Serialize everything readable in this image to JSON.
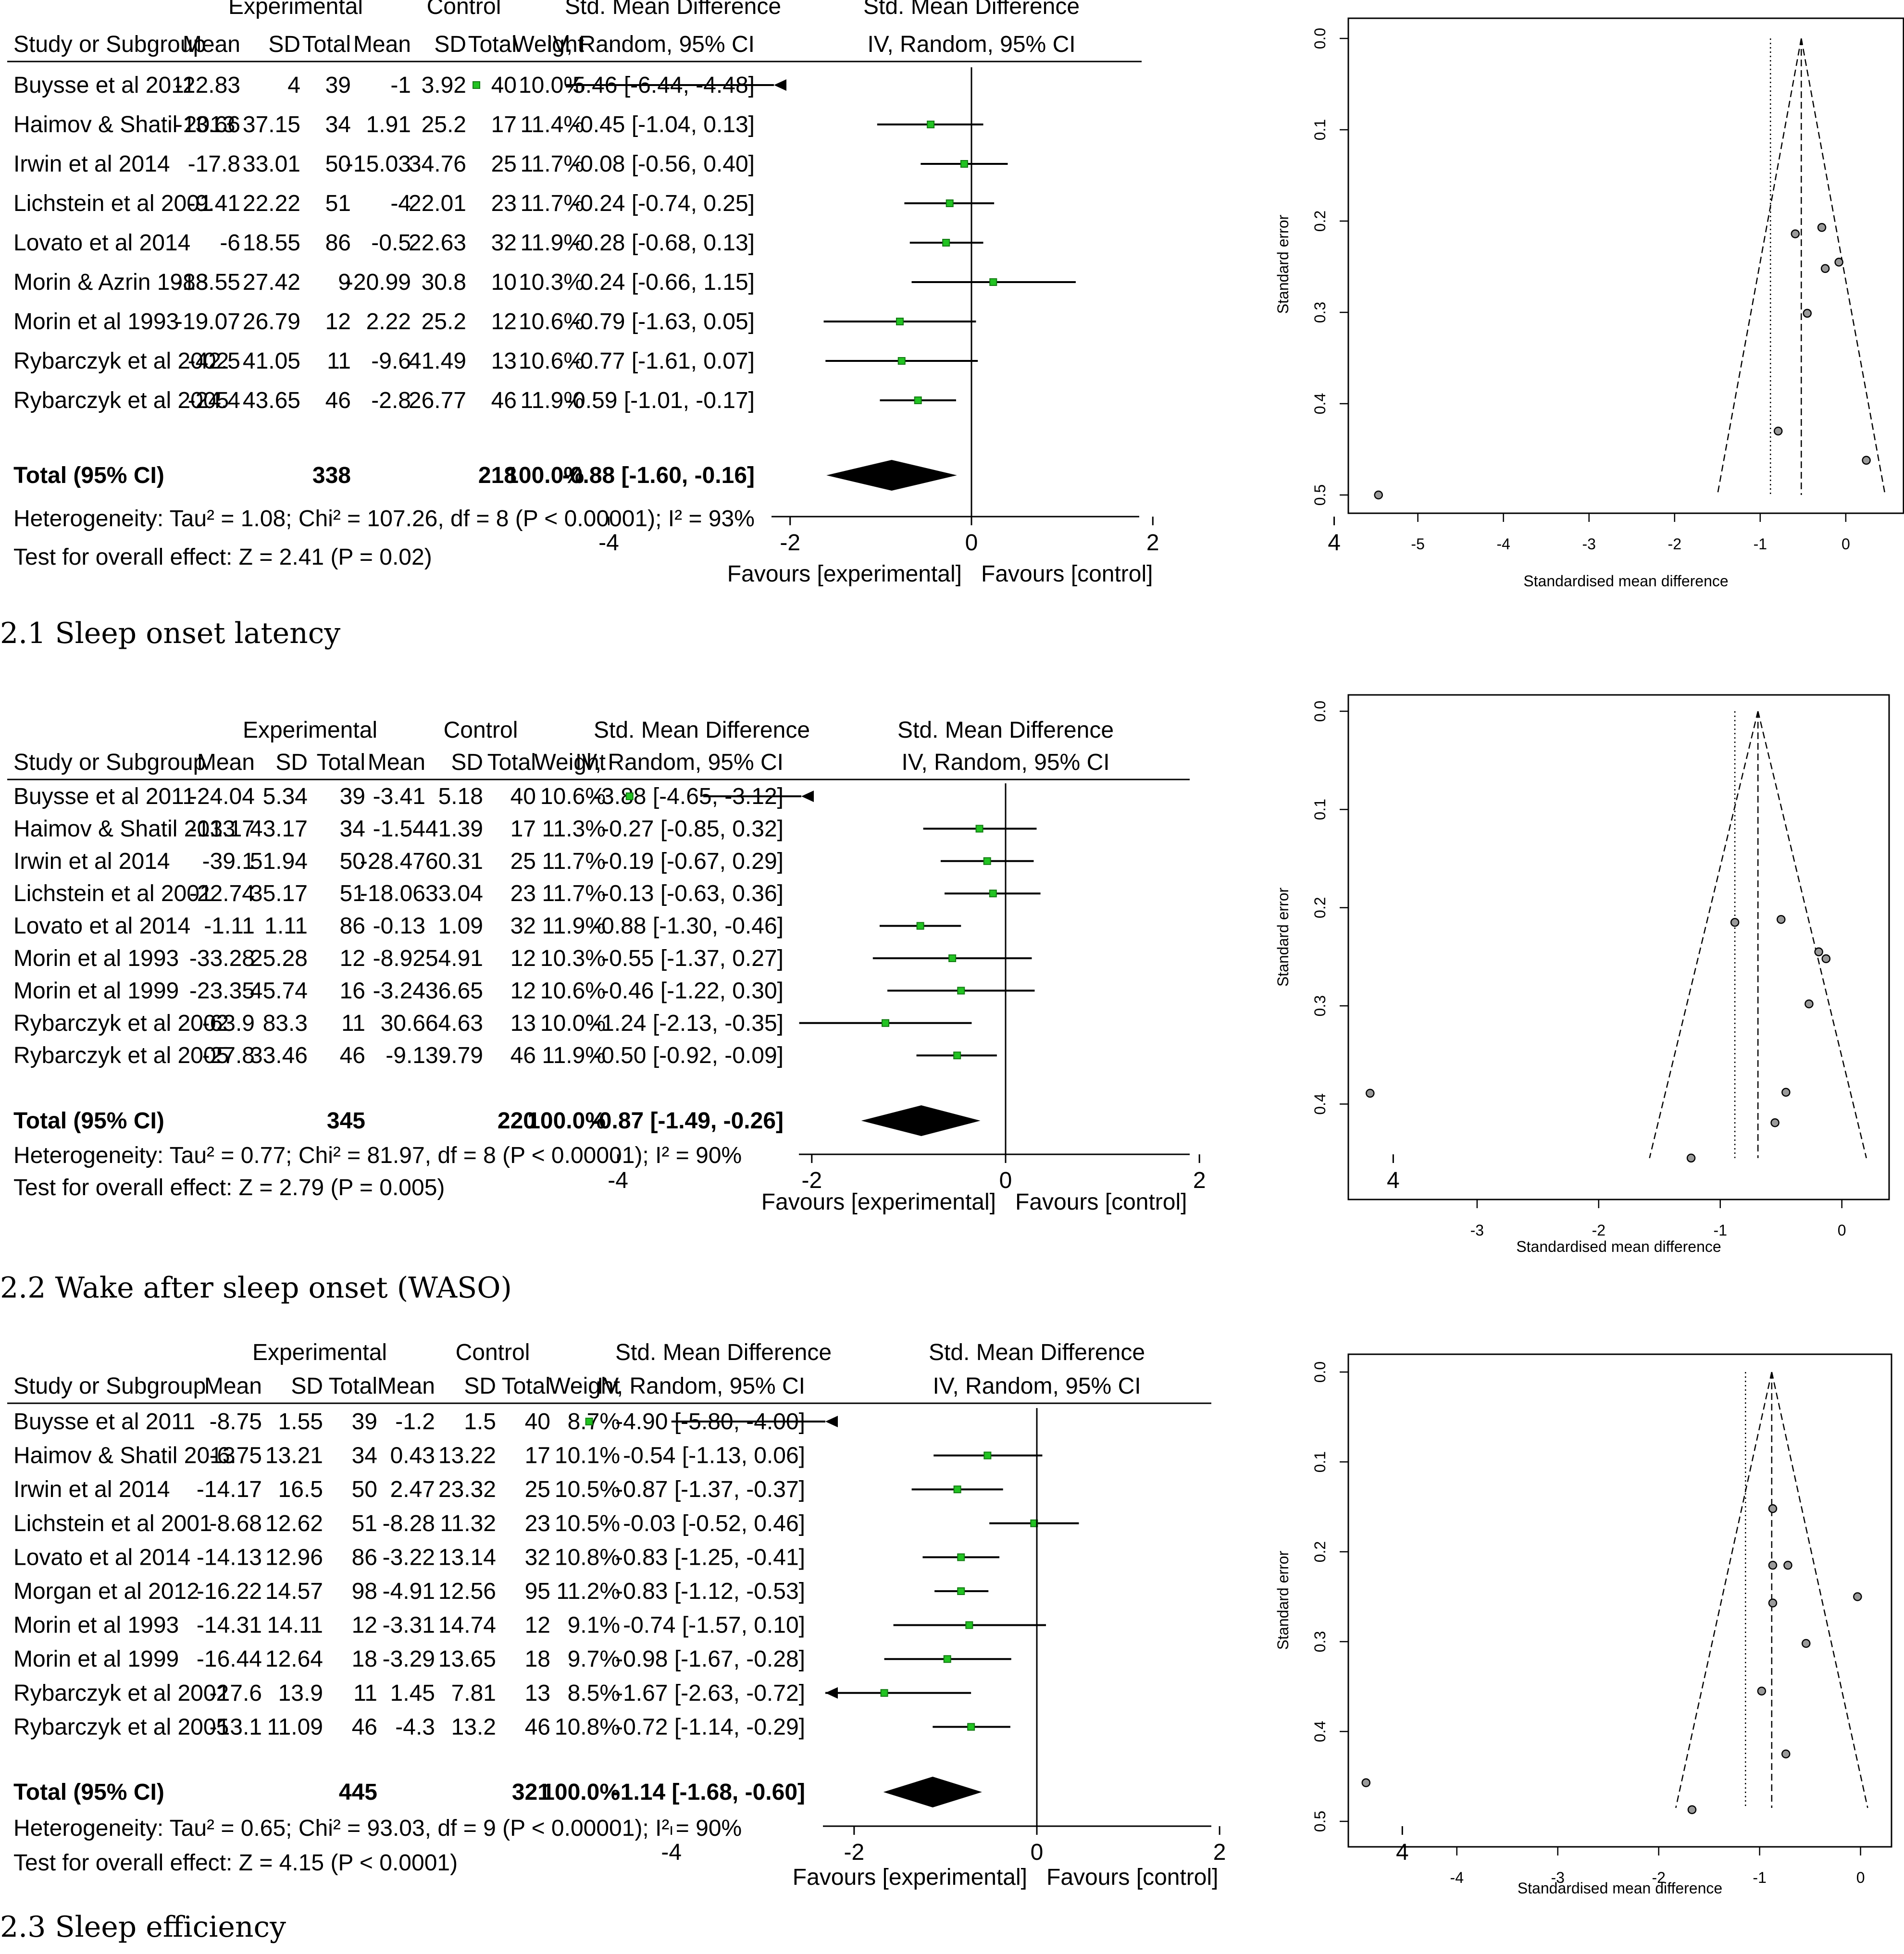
{
  "chart_data": [
    {
      "type": "forest",
      "caption": "2.1 Sleep onset latency",
      "headers": {
        "group_experimental": "Experimental",
        "group_control": "Control",
        "group_smd": "Std. Mean Difference",
        "plot_title": "Std. Mean Difference",
        "study": "Study or Subgroup",
        "mean": "Mean",
        "sd": "SD",
        "total": "Total",
        "weight": "Weight",
        "ci": "IV, Random, 95% CI",
        "plot_ci": "IV, Random, 95% CI"
      },
      "studies": [
        {
          "name": "Buysse et al 2011",
          "exp_mean": "-22.83",
          "exp_sd": "4",
          "exp_total": "39",
          "ctl_mean": "-1",
          "ctl_sd": "3.92",
          "ctl_total": "40",
          "weight": "10.0%",
          "ci_text": "-5.46 [-6.44, -4.48]",
          "smd": -5.46,
          "lo": -6.44,
          "hi": -4.48
        },
        {
          "name": "Haimov & Shatil 2013",
          "exp_mean": "-13.66",
          "exp_sd": "37.15",
          "exp_total": "34",
          "ctl_mean": "1.91",
          "ctl_sd": "25.2",
          "ctl_total": "17",
          "weight": "11.4%",
          "ci_text": "-0.45 [-1.04, 0.13]",
          "smd": -0.45,
          "lo": -1.04,
          "hi": 0.13
        },
        {
          "name": "Irwin et al 2014",
          "exp_mean": "-17.8",
          "exp_sd": "33.01",
          "exp_total": "50",
          "ctl_mean": "-15.03",
          "ctl_sd": "34.76",
          "ctl_total": "25",
          "weight": "11.7%",
          "ci_text": "-0.08 [-0.56, 0.40]",
          "smd": -0.08,
          "lo": -0.56,
          "hi": 0.4
        },
        {
          "name": "Lichstein et al 2001",
          "exp_mean": "-9.41",
          "exp_sd": "22.22",
          "exp_total": "51",
          "ctl_mean": "-4",
          "ctl_sd": "22.01",
          "ctl_total": "23",
          "weight": "11.7%",
          "ci_text": "-0.24 [-0.74, 0.25]",
          "smd": -0.24,
          "lo": -0.74,
          "hi": 0.25
        },
        {
          "name": "Lovato et al 2014",
          "exp_mean": "-6",
          "exp_sd": "18.55",
          "exp_total": "86",
          "ctl_mean": "-0.5",
          "ctl_sd": "22.63",
          "ctl_total": "32",
          "weight": "11.9%",
          "ci_text": "-0.28 [-0.68, 0.13]",
          "smd": -0.28,
          "lo": -0.68,
          "hi": 0.13
        },
        {
          "name": "Morin & Azrin 1988",
          "exp_mean": "-13.55",
          "exp_sd": "27.42",
          "exp_total": "9",
          "ctl_mean": "-20.99",
          "ctl_sd": "30.8",
          "ctl_total": "10",
          "weight": "10.3%",
          "ci_text": "0.24 [-0.66, 1.15]",
          "smd": 0.24,
          "lo": -0.66,
          "hi": 1.15
        },
        {
          "name": "Morin et al 1993",
          "exp_mean": "-19.07",
          "exp_sd": "26.79",
          "exp_total": "12",
          "ctl_mean": "2.22",
          "ctl_sd": "25.2",
          "ctl_total": "12",
          "weight": "10.6%",
          "ci_text": "-0.79 [-1.63, 0.05]",
          "smd": -0.79,
          "lo": -1.63,
          "hi": 0.05
        },
        {
          "name": "Rybarczyk et al 2002",
          "exp_mean": "-42.5",
          "exp_sd": "41.05",
          "exp_total": "11",
          "ctl_mean": "-9.6",
          "ctl_sd": "41.49",
          "ctl_total": "13",
          "weight": "10.6%",
          "ci_text": "-0.77 [-1.61, 0.07]",
          "smd": -0.77,
          "lo": -1.61,
          "hi": 0.07
        },
        {
          "name": "Rybarczyk et al 2005",
          "exp_mean": "-24.4",
          "exp_sd": "43.65",
          "exp_total": "46",
          "ctl_mean": "-2.8",
          "ctl_sd": "26.77",
          "ctl_total": "46",
          "weight": "11.9%",
          "ci_text": "-0.59 [-1.01, -0.17]",
          "smd": -0.59,
          "lo": -1.01,
          "hi": -0.17
        }
      ],
      "total": {
        "label": "Total (95% CI)",
        "exp_total": "338",
        "ctl_total": "218",
        "weight": "100.0%",
        "ci_text": "-0.88 [-1.60, -0.16]",
        "smd": -0.88,
        "lo": -1.6,
        "hi": -0.16
      },
      "heterogeneity": "Heterogeneity: Tau² = 1.08; Chi² = 107.26, df = 8 (P < 0.00001); I² = 93%",
      "overall_effect": "Test for overall effect: Z = 2.41 (P = 0.02)",
      "xlim": [
        -6,
        6
      ],
      "xticks": [
        -4,
        -2,
        0,
        2,
        4
      ],
      "xtick_labels": [
        "-4",
        "-2",
        "0",
        "2",
        "4"
      ],
      "favours_left": "Favours [experimental]",
      "favours_right": "Favours [control]"
    },
    {
      "type": "forest",
      "caption": "2.2 Wake after sleep onset (WASO)",
      "headers": {
        "group_experimental": "Experimental",
        "group_control": "Control",
        "group_smd": "Std. Mean Difference",
        "plot_title": "Std. Mean Difference",
        "study": "Study or Subgroup",
        "mean": "Mean",
        "sd": "SD",
        "total": "Total",
        "weight": "Weight",
        "ci": "IV, Random, 95% CI",
        "plot_ci": "IV, Random, 95% CI"
      },
      "studies": [
        {
          "name": "Buysse et al 2011",
          "exp_mean": "-24.04",
          "exp_sd": "5.34",
          "exp_total": "39",
          "ctl_mean": "-3.41",
          "ctl_sd": "5.18",
          "ctl_total": "40",
          "weight": "10.6%",
          "ci_text": "-3.88 [-4.65, -3.12]",
          "smd": -3.88,
          "lo": -4.65,
          "hi": -3.12
        },
        {
          "name": "Haimov & Shatil 2013",
          "exp_mean": "-13.17",
          "exp_sd": "43.17",
          "exp_total": "34",
          "ctl_mean": "-1.54",
          "ctl_sd": "41.39",
          "ctl_total": "17",
          "weight": "11.3%",
          "ci_text": "-0.27 [-0.85, 0.32]",
          "smd": -0.27,
          "lo": -0.85,
          "hi": 0.32
        },
        {
          "name": "Irwin et al 2014",
          "exp_mean": "-39.1",
          "exp_sd": "51.94",
          "exp_total": "50",
          "ctl_mean": "-28.47",
          "ctl_sd": "60.31",
          "ctl_total": "25",
          "weight": "11.7%",
          "ci_text": "-0.19 [-0.67, 0.29]",
          "smd": -0.19,
          "lo": -0.67,
          "hi": 0.29
        },
        {
          "name": "Lichstein et al 2001",
          "exp_mean": "-22.74",
          "exp_sd": "35.17",
          "exp_total": "51",
          "ctl_mean": "-18.06",
          "ctl_sd": "33.04",
          "ctl_total": "23",
          "weight": "11.7%",
          "ci_text": "-0.13 [-0.63, 0.36]",
          "smd": -0.13,
          "lo": -0.63,
          "hi": 0.36
        },
        {
          "name": "Lovato et al 2014",
          "exp_mean": "-1.11",
          "exp_sd": "1.11",
          "exp_total": "86",
          "ctl_mean": "-0.13",
          "ctl_sd": "1.09",
          "ctl_total": "32",
          "weight": "11.9%",
          "ci_text": "-0.88 [-1.30, -0.46]",
          "smd": -0.88,
          "lo": -1.3,
          "hi": -0.46
        },
        {
          "name": "Morin et al 1993",
          "exp_mean": "-33.28",
          "exp_sd": "25.28",
          "exp_total": "12",
          "ctl_mean": "-8.92",
          "ctl_sd": "54.91",
          "ctl_total": "12",
          "weight": "10.3%",
          "ci_text": "-0.55 [-1.37, 0.27]",
          "smd": -0.55,
          "lo": -1.37,
          "hi": 0.27
        },
        {
          "name": "Morin et al 1999",
          "exp_mean": "-23.35",
          "exp_sd": "45.74",
          "exp_total": "16",
          "ctl_mean": "-3.24",
          "ctl_sd": "36.65",
          "ctl_total": "12",
          "weight": "10.6%",
          "ci_text": "-0.46 [-1.22, 0.30]",
          "smd": -0.46,
          "lo": -1.22,
          "hi": 0.3
        },
        {
          "name": "Rybarczyk et al 2002",
          "exp_mean": "-63.9",
          "exp_sd": "83.3",
          "exp_total": "11",
          "ctl_mean": "30.6",
          "ctl_sd": "64.63",
          "ctl_total": "13",
          "weight": "10.0%",
          "ci_text": "-1.24 [-2.13, -0.35]",
          "smd": -1.24,
          "lo": -2.13,
          "hi": -0.35
        },
        {
          "name": "Rybarczyk et al 2005",
          "exp_mean": "-27.8",
          "exp_sd": "33.46",
          "exp_total": "46",
          "ctl_mean": "-9.1",
          "ctl_sd": "39.79",
          "ctl_total": "46",
          "weight": "11.9%",
          "ci_text": "-0.50 [-0.92, -0.09]",
          "smd": -0.5,
          "lo": -0.92,
          "hi": -0.09
        }
      ],
      "total": {
        "label": "Total (95% CI)",
        "exp_total": "345",
        "ctl_total": "220",
        "weight": "100.0%",
        "ci_text": "-0.87 [-1.49, -0.26]",
        "smd": -0.87,
        "lo": -1.49,
        "hi": -0.26
      },
      "heterogeneity": "Heterogeneity: Tau² = 0.77; Chi² = 81.97, df = 8 (P < 0.00001); I² = 90%",
      "overall_effect": "Test for overall effect: Z = 2.79 (P = 0.005)",
      "xlim": [
        -5,
        4.5
      ],
      "xticks": [
        -4,
        -2,
        0,
        2,
        4
      ],
      "xtick_labels": [
        "-4",
        "-2",
        "0",
        "2",
        "4"
      ],
      "favours_left": "Favours [experimental]",
      "favours_right": "Favours [control]"
    },
    {
      "type": "forest",
      "caption": "2.3 Sleep efficiency",
      "headers": {
        "group_experimental": "Experimental",
        "group_control": "Control",
        "group_smd": "Std. Mean Difference",
        "plot_title": "Std. Mean Difference",
        "study": "Study or Subgroup",
        "mean": "Mean",
        "sd": "SD",
        "total": "Total",
        "weight": "Weight",
        "ci": "IV, Random, 95% CI",
        "plot_ci": "IV, Random, 95% CI"
      },
      "studies": [
        {
          "name": "Buysse et al 2011",
          "exp_mean": "-8.75",
          "exp_sd": "1.55",
          "exp_total": "39",
          "ctl_mean": "-1.2",
          "ctl_sd": "1.5",
          "ctl_total": "40",
          "weight": "8.7%",
          "ci_text": "-4.90 [-5.80, -4.00]",
          "smd": -4.9,
          "lo": -5.8,
          "hi": -4.0
        },
        {
          "name": "Haimov & Shatil 2013",
          "exp_mean": "-6.75",
          "exp_sd": "13.21",
          "exp_total": "34",
          "ctl_mean": "0.43",
          "ctl_sd": "13.22",
          "ctl_total": "17",
          "weight": "10.1%",
          "ci_text": "-0.54 [-1.13, 0.06]",
          "smd": -0.54,
          "lo": -1.13,
          "hi": 0.06
        },
        {
          "name": "Irwin et al 2014",
          "exp_mean": "-14.17",
          "exp_sd": "16.5",
          "exp_total": "50",
          "ctl_mean": "2.47",
          "ctl_sd": "23.32",
          "ctl_total": "25",
          "weight": "10.5%",
          "ci_text": "-0.87 [-1.37, -0.37]",
          "smd": -0.87,
          "lo": -1.37,
          "hi": -0.37
        },
        {
          "name": "Lichstein et al 2001",
          "exp_mean": "-8.68",
          "exp_sd": "12.62",
          "exp_total": "51",
          "ctl_mean": "-8.28",
          "ctl_sd": "11.32",
          "ctl_total": "23",
          "weight": "10.5%",
          "ci_text": "-0.03 [-0.52, 0.46]",
          "smd": -0.03,
          "lo": -0.52,
          "hi": 0.46
        },
        {
          "name": "Lovato et al 2014",
          "exp_mean": "-14.13",
          "exp_sd": "12.96",
          "exp_total": "86",
          "ctl_mean": "-3.22",
          "ctl_sd": "13.14",
          "ctl_total": "32",
          "weight": "10.8%",
          "ci_text": "-0.83 [-1.25, -0.41]",
          "smd": -0.83,
          "lo": -1.25,
          "hi": -0.41
        },
        {
          "name": "Morgan et al 2012",
          "exp_mean": "-16.22",
          "exp_sd": "14.57",
          "exp_total": "98",
          "ctl_mean": "-4.91",
          "ctl_sd": "12.56",
          "ctl_total": "95",
          "weight": "11.2%",
          "ci_text": "-0.83 [-1.12, -0.53]",
          "smd": -0.83,
          "lo": -1.12,
          "hi": -0.53
        },
        {
          "name": "Morin et al 1993",
          "exp_mean": "-14.31",
          "exp_sd": "14.11",
          "exp_total": "12",
          "ctl_mean": "-3.31",
          "ctl_sd": "14.74",
          "ctl_total": "12",
          "weight": "9.1%",
          "ci_text": "-0.74 [-1.57, 0.10]",
          "smd": -0.74,
          "lo": -1.57,
          "hi": 0.1
        },
        {
          "name": "Morin et al 1999",
          "exp_mean": "-16.44",
          "exp_sd": "12.64",
          "exp_total": "18",
          "ctl_mean": "-3.29",
          "ctl_sd": "13.65",
          "ctl_total": "18",
          "weight": "9.7%",
          "ci_text": "-0.98 [-1.67, -0.28]",
          "smd": -0.98,
          "lo": -1.67,
          "hi": -0.28
        },
        {
          "name": "Rybarczyk et al 2002",
          "exp_mean": "-17.6",
          "exp_sd": "13.9",
          "exp_total": "11",
          "ctl_mean": "1.45",
          "ctl_sd": "7.81",
          "ctl_total": "13",
          "weight": "8.5%",
          "ci_text": "-1.67 [-2.63, -0.72]",
          "smd": -1.67,
          "lo": -2.63,
          "hi": -0.72
        },
        {
          "name": "Rybarczyk et al 2005",
          "exp_mean": "-13.1",
          "exp_sd": "11.09",
          "exp_total": "46",
          "ctl_mean": "-4.3",
          "ctl_sd": "13.2",
          "ctl_total": "46",
          "weight": "10.8%",
          "ci_text": "-0.72 [-1.14, -0.29]",
          "smd": -0.72,
          "lo": -1.14,
          "hi": -0.29
        }
      ],
      "total": {
        "label": "Total (95% CI)",
        "exp_total": "445",
        "ctl_total": "321",
        "weight": "100.0%",
        "ci_text": "-1.14 [-1.68, -0.60]",
        "smd": -1.14,
        "lo": -1.68,
        "hi": -0.6
      },
      "heterogeneity": "Heterogeneity: Tau² = 0.65; Chi² = 93.03, df = 9 (P < 0.00001); I² = 90%",
      "overall_effect": "Test for overall effect: Z = 4.15 (P < 0.0001)",
      "xlim": [
        -5.8,
        4.6
      ],
      "xticks": [
        -4,
        -2,
        0,
        2,
        4
      ],
      "xtick_labels": [
        "-4",
        "-2",
        "0",
        "2",
        "4"
      ],
      "favours_left": "Favours [experimental]",
      "favours_right": "Favours [control]",
      "arrow_left_study": "Buysse et al 2011"
    },
    {
      "type": "scatter",
      "subtype": "funnel",
      "xlabel": "Standardised mean difference",
      "ylabel": "Standard error",
      "xlim": [
        -5.7,
        0.45
      ],
      "ylim": [
        0,
        0.5
      ],
      "y_reversed": true,
      "xticks": [
        -5,
        -4,
        -3,
        -2,
        -1,
        0
      ],
      "xtick_labels": [
        "-5",
        "-4",
        "-3",
        "-2",
        "-1",
        "0"
      ],
      "yticks": [
        0,
        0.1,
        0.2,
        0.3,
        0.4,
        0.5
      ],
      "ytick_labels": [
        "0.0",
        "0.1",
        "0.2",
        "0.3",
        "0.4",
        "0.5"
      ],
      "pooled_dashed": -0.52,
      "pooled_dotted": -0.88,
      "funnel_bottom_se": 0.5,
      "points": [
        {
          "x": -5.46,
          "y": 0.5
        },
        {
          "x": -0.79,
          "y": 0.43
        },
        {
          "x": 0.24,
          "y": 0.462
        },
        {
          "x": -0.45,
          "y": 0.301
        },
        {
          "x": -0.24,
          "y": 0.252
        },
        {
          "x": -0.08,
          "y": 0.245
        },
        {
          "x": -0.28,
          "y": 0.207
        },
        {
          "x": -0.59,
          "y": 0.214
        }
      ]
    },
    {
      "type": "scatter",
      "subtype": "funnel",
      "xlabel": "Standardised mean difference",
      "ylabel": "Standard error",
      "xlim": [
        -3.98,
        0.27
      ],
      "ylim": [
        0,
        0.46
      ],
      "y_reversed": true,
      "xticks": [
        -3,
        -2,
        -1,
        0
      ],
      "xtick_labels": [
        "-3",
        "-2",
        "-1",
        "0"
      ],
      "yticks": [
        0,
        0.1,
        0.2,
        0.3,
        0.4
      ],
      "ytick_labels": [
        "0.0",
        "0.1",
        "0.2",
        "0.3",
        "0.4"
      ],
      "pooled_dashed": -0.69,
      "pooled_dotted": -0.88,
      "funnel_bottom_se": 0.455,
      "points": [
        {
          "x": -3.88,
          "y": 0.389
        },
        {
          "x": -1.24,
          "y": 0.455
        },
        {
          "x": -0.88,
          "y": 0.215
        },
        {
          "x": -0.55,
          "y": 0.419
        },
        {
          "x": -0.46,
          "y": 0.388
        },
        {
          "x": -0.5,
          "y": 0.212
        },
        {
          "x": -0.27,
          "y": 0.298
        },
        {
          "x": -0.19,
          "y": 0.245
        },
        {
          "x": -0.13,
          "y": 0.252
        }
      ]
    },
    {
      "type": "scatter",
      "subtype": "funnel",
      "xlabel": "Standardised mean difference",
      "ylabel": "Standard error",
      "xlim": [
        -4.98,
        0.14
      ],
      "ylim": [
        0,
        0.5
      ],
      "y_reversed": true,
      "xticks": [
        -4,
        -3,
        -2,
        -1,
        0
      ],
      "xtick_labels": [
        "-4",
        "-3",
        "-2",
        "-1",
        "0"
      ],
      "yticks": [
        0,
        0.1,
        0.2,
        0.3,
        0.4,
        0.5
      ],
      "ytick_labels": [
        "0.0",
        "0.1",
        "0.2",
        "0.3",
        "0.4",
        "0.5"
      ],
      "pooled_dashed": -0.88,
      "pooled_dotted": -1.14,
      "funnel_bottom_se": 0.485,
      "points": [
        {
          "x": -4.9,
          "y": 0.457
        },
        {
          "x": -1.67,
          "y": 0.487
        },
        {
          "x": -0.98,
          "y": 0.355
        },
        {
          "x": -0.74,
          "y": 0.425
        },
        {
          "x": -0.54,
          "y": 0.302
        },
        {
          "x": -0.03,
          "y": 0.25
        },
        {
          "x": -0.87,
          "y": 0.152
        },
        {
          "x": -0.87,
          "y": 0.215
        },
        {
          "x": -0.72,
          "y": 0.215
        },
        {
          "x": -0.87,
          "y": 0.257
        }
      ]
    }
  ]
}
